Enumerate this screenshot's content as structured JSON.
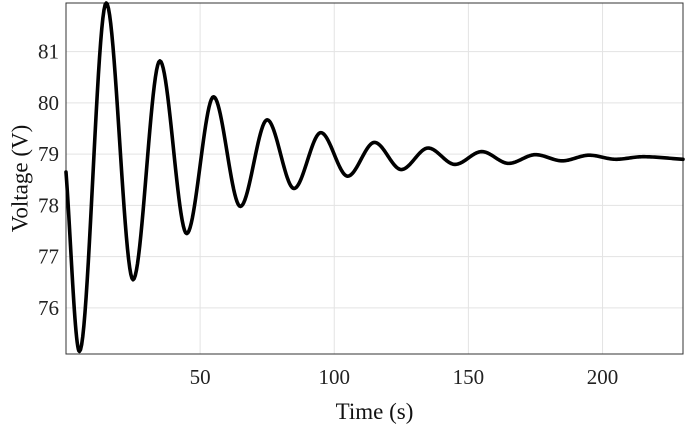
{
  "chart_data": {
    "type": "line",
    "xlabel": "Time (s)",
    "ylabel": "Voltage (V)",
    "xlim": [
      0,
      230
    ],
    "ylim": [
      75.1,
      81.95
    ],
    "xticks": [
      50,
      100,
      150,
      200
    ],
    "yticks": [
      76,
      77,
      78,
      79,
      80,
      81
    ],
    "grid": true,
    "colors": {
      "line": "#000000",
      "grid": "#e3e3e3",
      "axis": "#333333"
    },
    "series": [
      {
        "x": [
          0,
          5,
          15,
          25,
          35,
          45,
          55,
          65,
          75,
          85,
          95,
          105,
          115,
          125,
          135,
          145,
          155,
          165,
          175,
          185,
          195,
          205,
          215,
          230
        ],
        "values": [
          78.65,
          75.15,
          81.95,
          76.55,
          80.82,
          77.45,
          80.12,
          77.98,
          79.67,
          78.33,
          79.42,
          78.57,
          79.23,
          78.7,
          79.12,
          78.8,
          79.05,
          78.82,
          78.99,
          78.87,
          78.98,
          78.9,
          78.95,
          78.9
        ]
      }
    ]
  }
}
